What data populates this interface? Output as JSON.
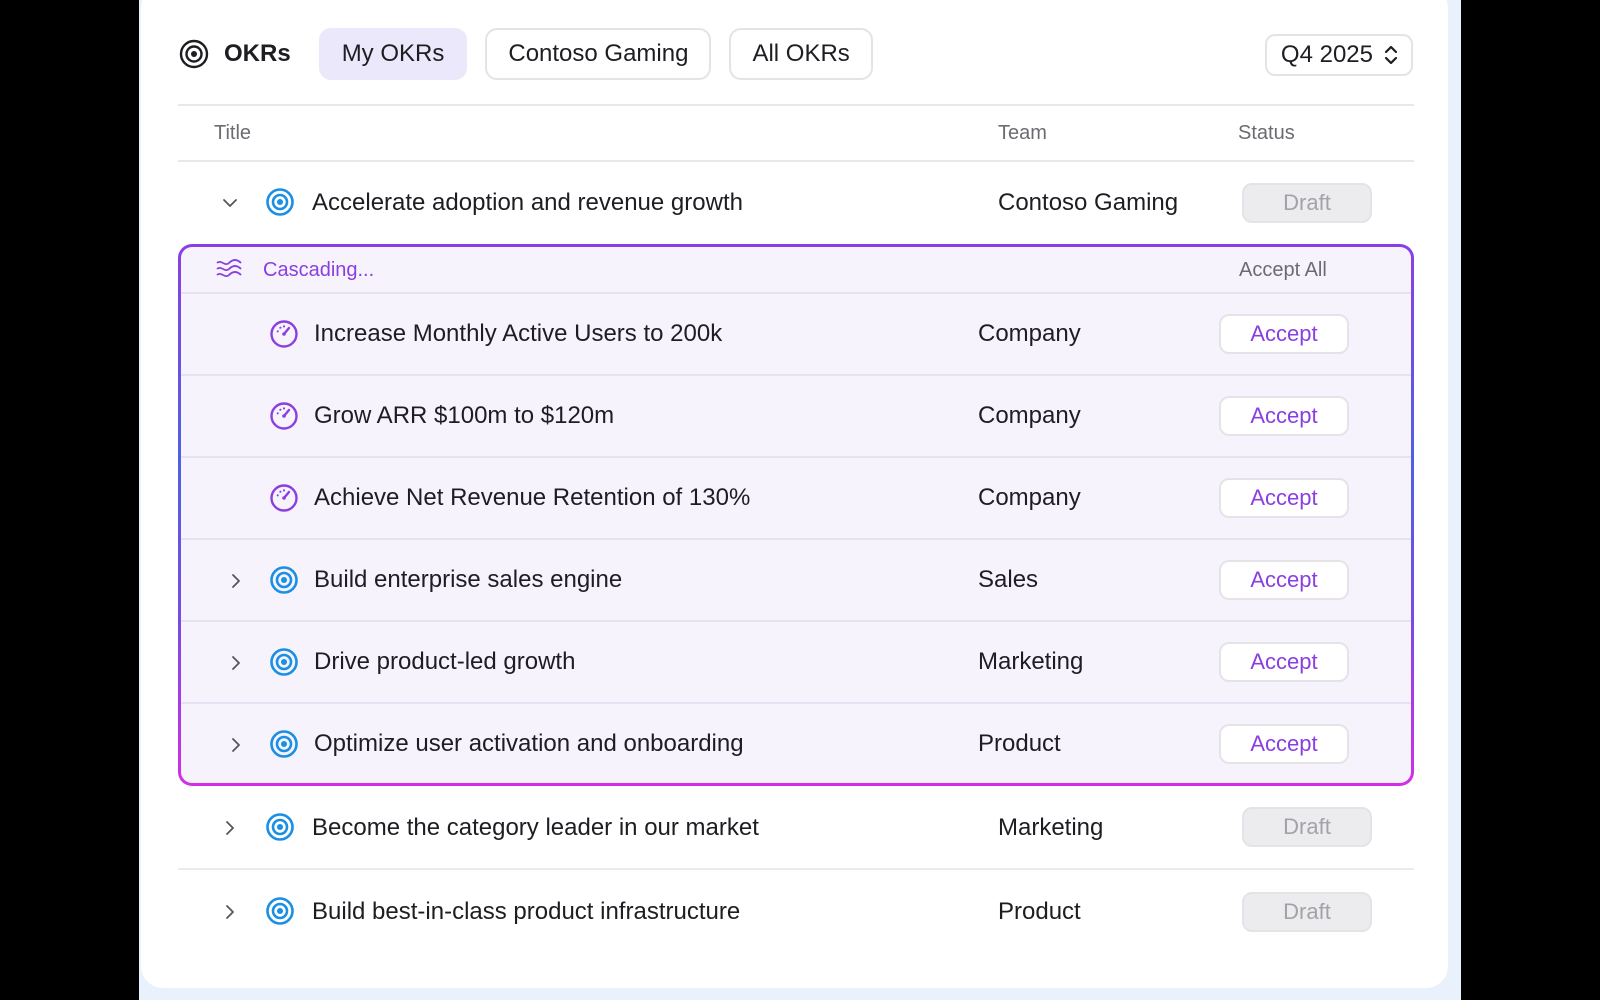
{
  "header": {
    "app_title": "OKRs",
    "tabs": [
      {
        "label": "My OKRs",
        "active": true
      },
      {
        "label": "Contoso Gaming",
        "active": false
      },
      {
        "label": "All OKRs",
        "active": false
      }
    ],
    "quarter": "Q4 2025"
  },
  "table": {
    "columns": {
      "title": "Title",
      "team": "Team",
      "status": "Status"
    },
    "parent": {
      "title": "Accelerate adoption and revenue growth",
      "team": "Contoso Gaming",
      "status": "Draft",
      "expanded": true
    },
    "cascade": {
      "label": "Cascading...",
      "accept_all": "Accept All",
      "rows": [
        {
          "title": "Increase Monthly Active Users to 200k",
          "team": "Company",
          "action": "Accept",
          "icon": "gauge-icon"
        },
        {
          "title": "Grow ARR $100m to $120m",
          "team": "Company",
          "action": "Accept",
          "icon": "gauge-icon"
        },
        {
          "title": "Achieve Net Revenue Retention of 130%",
          "team": "Company",
          "action": "Accept",
          "icon": "gauge-icon"
        },
        {
          "title": "Build enterprise sales engine",
          "team": "Sales",
          "action": "Accept",
          "icon": "target-icon"
        },
        {
          "title": "Drive product-led growth",
          "team": "Marketing",
          "action": "Accept",
          "icon": "target-icon"
        },
        {
          "title": "Optimize user activation and onboarding",
          "team": "Product",
          "action": "Accept",
          "icon": "target-icon"
        }
      ]
    },
    "rows": [
      {
        "title": "Become the category leader in our market",
        "team": "Marketing",
        "status": "Draft"
      },
      {
        "title": "Build best-in-class product infrastructure",
        "team": "Product",
        "status": "Draft"
      }
    ]
  },
  "colors": {
    "accent_purple": "#8a3fe0",
    "target_blue": "#1a8fe3",
    "tab_active_bg": "#ece8fb"
  }
}
